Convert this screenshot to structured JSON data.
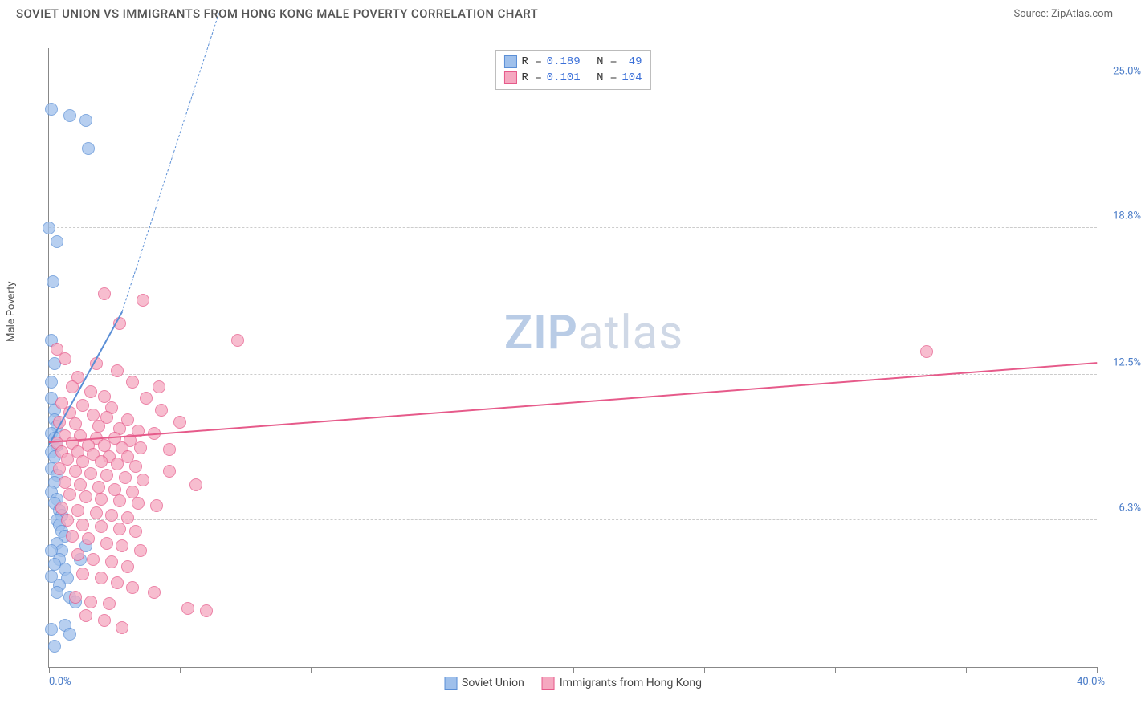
{
  "header": {
    "title": "SOVIET UNION VS IMMIGRANTS FROM HONG KONG MALE POVERTY CORRELATION CHART",
    "source": "Source: ZipAtlas.com"
  },
  "ylabel": "Male Poverty",
  "watermark": {
    "bold": "ZIP",
    "rest": "atlas"
  },
  "chart": {
    "type": "scatter",
    "xlim": [
      0,
      40
    ],
    "ylim": [
      0,
      26.5
    ],
    "xticks_minor": [
      0,
      5,
      10,
      15,
      20,
      25,
      30,
      35,
      40
    ],
    "yticks": [
      {
        "v": 6.3,
        "label": "6.3%"
      },
      {
        "v": 12.5,
        "label": "12.5%"
      },
      {
        "v": 18.8,
        "label": "18.8%"
      },
      {
        "v": 25.0,
        "label": "25.0%"
      }
    ],
    "x_min_label": "0.0%",
    "x_max_label": "40.0%",
    "grid_color": "#cccccc",
    "axis_color": "#888888",
    "background": "#ffffff",
    "marker_radius": 8,
    "marker_border": 1.2,
    "marker_fill_opacity": 0.28,
    "series_a": {
      "name": "Soviet Union",
      "color": "#5b8fd6",
      "fill": "#9fc0eb",
      "R": "0.189",
      "N": "49",
      "trend": {
        "x1": 0,
        "y1": 9.5,
        "x2": 2.8,
        "y2": 15.2,
        "dash_to_x": 6.5,
        "dash_to_y": 28
      },
      "points": [
        [
          0.1,
          23.9
        ],
        [
          0.8,
          23.6
        ],
        [
          1.4,
          23.4
        ],
        [
          1.5,
          22.2
        ],
        [
          0.0,
          18.8
        ],
        [
          0.3,
          18.2
        ],
        [
          0.1,
          14.0
        ],
        [
          0.2,
          13.0
        ],
        [
          0.1,
          12.2
        ],
        [
          0.1,
          11.5
        ],
        [
          0.2,
          11.0
        ],
        [
          0.2,
          10.6
        ],
        [
          0.3,
          10.3
        ],
        [
          0.1,
          10.0
        ],
        [
          0.2,
          9.8
        ],
        [
          0.3,
          9.5
        ],
        [
          0.1,
          9.2
        ],
        [
          0.2,
          9.0
        ],
        [
          0.1,
          8.5
        ],
        [
          0.3,
          8.2
        ],
        [
          0.2,
          7.9
        ],
        [
          0.1,
          7.5
        ],
        [
          0.3,
          7.2
        ],
        [
          0.2,
          7.0
        ],
        [
          0.4,
          6.7
        ],
        [
          0.5,
          6.5
        ],
        [
          0.3,
          6.3
        ],
        [
          0.4,
          6.1
        ],
        [
          0.5,
          5.8
        ],
        [
          0.6,
          5.6
        ],
        [
          0.3,
          5.3
        ],
        [
          0.5,
          5.0
        ],
        [
          0.4,
          4.6
        ],
        [
          0.6,
          4.2
        ],
        [
          0.7,
          3.8
        ],
        [
          0.4,
          3.5
        ],
        [
          0.1,
          5.0
        ],
        [
          0.2,
          4.4
        ],
        [
          0.1,
          3.9
        ],
        [
          0.3,
          3.2
        ],
        [
          0.8,
          3.0
        ],
        [
          1.0,
          2.8
        ],
        [
          0.6,
          1.8
        ],
        [
          0.8,
          1.4
        ],
        [
          0.1,
          1.6
        ],
        [
          0.2,
          0.9
        ],
        [
          1.4,
          5.2
        ],
        [
          1.2,
          4.6
        ],
        [
          0.15,
          16.5
        ]
      ]
    },
    "series_b": {
      "name": "Immigrants from Hong Kong",
      "color": "#e65a8a",
      "fill": "#f5a8c0",
      "R": "0.101",
      "N": "104",
      "trend": {
        "x1": 0,
        "y1": 9.6,
        "x2": 40,
        "y2": 13.0
      },
      "points": [
        [
          2.1,
          16.0
        ],
        [
          3.6,
          15.7
        ],
        [
          2.7,
          14.7
        ],
        [
          7.2,
          14.0
        ],
        [
          33.5,
          13.5
        ],
        [
          0.6,
          13.2
        ],
        [
          1.8,
          13.0
        ],
        [
          2.6,
          12.7
        ],
        [
          1.1,
          12.4
        ],
        [
          3.2,
          12.2
        ],
        [
          0.9,
          12.0
        ],
        [
          1.6,
          11.8
        ],
        [
          2.1,
          11.6
        ],
        [
          3.7,
          11.5
        ],
        [
          0.5,
          11.3
        ],
        [
          1.3,
          11.2
        ],
        [
          2.4,
          11.1
        ],
        [
          4.3,
          11.0
        ],
        [
          0.8,
          10.9
        ],
        [
          1.7,
          10.8
        ],
        [
          2.2,
          10.7
        ],
        [
          3.0,
          10.6
        ],
        [
          0.4,
          10.5
        ],
        [
          1.0,
          10.4
        ],
        [
          1.9,
          10.3
        ],
        [
          2.7,
          10.2
        ],
        [
          3.4,
          10.1
        ],
        [
          4.0,
          10.0
        ],
        [
          0.6,
          9.9
        ],
        [
          1.2,
          9.9
        ],
        [
          1.8,
          9.8
        ],
        [
          2.5,
          9.8
        ],
        [
          3.1,
          9.7
        ],
        [
          0.3,
          9.6
        ],
        [
          0.9,
          9.6
        ],
        [
          1.5,
          9.5
        ],
        [
          2.1,
          9.5
        ],
        [
          2.8,
          9.4
        ],
        [
          3.5,
          9.4
        ],
        [
          4.6,
          9.3
        ],
        [
          0.5,
          9.2
        ],
        [
          1.1,
          9.2
        ],
        [
          1.7,
          9.1
        ],
        [
          2.3,
          9.0
        ],
        [
          3.0,
          9.0
        ],
        [
          0.7,
          8.9
        ],
        [
          1.3,
          8.8
        ],
        [
          2.0,
          8.8
        ],
        [
          2.6,
          8.7
        ],
        [
          3.3,
          8.6
        ],
        [
          0.4,
          8.5
        ],
        [
          1.0,
          8.4
        ],
        [
          1.6,
          8.3
        ],
        [
          2.2,
          8.2
        ],
        [
          2.9,
          8.1
        ],
        [
          3.6,
          8.0
        ],
        [
          0.6,
          7.9
        ],
        [
          1.2,
          7.8
        ],
        [
          1.9,
          7.7
        ],
        [
          2.5,
          7.6
        ],
        [
          3.2,
          7.5
        ],
        [
          0.8,
          7.4
        ],
        [
          1.4,
          7.3
        ],
        [
          2.0,
          7.2
        ],
        [
          2.7,
          7.1
        ],
        [
          3.4,
          7.0
        ],
        [
          4.1,
          6.9
        ],
        [
          0.5,
          6.8
        ],
        [
          1.1,
          6.7
        ],
        [
          1.8,
          6.6
        ],
        [
          2.4,
          6.5
        ],
        [
          3.0,
          6.4
        ],
        [
          0.7,
          6.3
        ],
        [
          1.3,
          6.1
        ],
        [
          2.0,
          6.0
        ],
        [
          2.7,
          5.9
        ],
        [
          3.3,
          5.8
        ],
        [
          0.9,
          5.6
        ],
        [
          1.5,
          5.5
        ],
        [
          2.2,
          5.3
        ],
        [
          2.8,
          5.2
        ],
        [
          3.5,
          5.0
        ],
        [
          1.1,
          4.8
        ],
        [
          1.7,
          4.6
        ],
        [
          2.4,
          4.5
        ],
        [
          3.0,
          4.3
        ],
        [
          1.3,
          4.0
        ],
        [
          2.0,
          3.8
        ],
        [
          2.6,
          3.6
        ],
        [
          3.2,
          3.4
        ],
        [
          1.0,
          3.0
        ],
        [
          1.6,
          2.8
        ],
        [
          2.3,
          2.7
        ],
        [
          5.3,
          2.5
        ],
        [
          6.0,
          2.4
        ],
        [
          1.4,
          2.2
        ],
        [
          2.1,
          2.0
        ],
        [
          2.8,
          1.7
        ],
        [
          4.0,
          3.2
        ],
        [
          4.6,
          8.4
        ],
        [
          5.0,
          10.5
        ],
        [
          5.6,
          7.8
        ],
        [
          4.2,
          12.0
        ],
        [
          0.3,
          13.6
        ]
      ]
    }
  },
  "legend_top": {
    "row_a": {
      "R_label": "R =",
      "N_label": "N ="
    },
    "row_b": {
      "R_label": "R =",
      "N_label": "N ="
    }
  }
}
